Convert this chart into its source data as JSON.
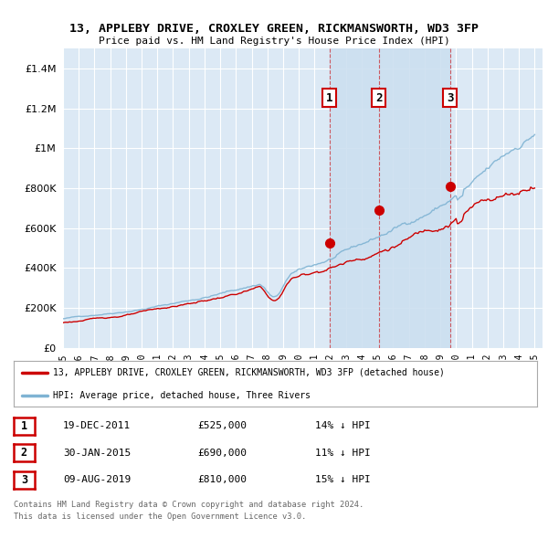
{
  "title": "13, APPLEBY DRIVE, CROXLEY GREEN, RICKMANSWORTH, WD3 3FP",
  "subtitle": "Price paid vs. HM Land Registry's House Price Index (HPI)",
  "background_color": "#ffffff",
  "chart_bg_color": "#dce9f5",
  "grid_color": "#c8d8e8",
  "ylim": [
    0,
    1500000
  ],
  "yticks": [
    0,
    200000,
    400000,
    600000,
    800000,
    1000000,
    1200000,
    1400000
  ],
  "xlim_start": 1995.0,
  "xlim_end": 2025.5,
  "xticks": [
    1995,
    1996,
    1997,
    1998,
    1999,
    2000,
    2001,
    2002,
    2003,
    2004,
    2005,
    2006,
    2007,
    2008,
    2009,
    2010,
    2011,
    2012,
    2013,
    2014,
    2015,
    2016,
    2017,
    2018,
    2019,
    2020,
    2021,
    2022,
    2023,
    2024,
    2025
  ],
  "sale1_x": 2011.96,
  "sale1_y": 525000,
  "sale1_label": "1",
  "sale2_x": 2015.08,
  "sale2_y": 690000,
  "sale2_label": "2",
  "sale3_x": 2019.61,
  "sale3_y": 810000,
  "sale3_label": "3",
  "red_color": "#cc0000",
  "blue_color": "#7fb3d3",
  "shade_color": "#ccdff0",
  "legend_line1": "13, APPLEBY DRIVE, CROXLEY GREEN, RICKMANSWORTH, WD3 3FP (detached house)",
  "legend_line2": "HPI: Average price, detached house, Three Rivers",
  "table_data": [
    {
      "num": "1",
      "date": "19-DEC-2011",
      "price": "£525,000",
      "hpi": "14% ↓ HPI"
    },
    {
      "num": "2",
      "date": "30-JAN-2015",
      "price": "£690,000",
      "hpi": "11% ↓ HPI"
    },
    {
      "num": "3",
      "date": "09-AUG-2019",
      "price": "£810,000",
      "hpi": "15% ↓ HPI"
    }
  ],
  "footer1": "Contains HM Land Registry data © Crown copyright and database right 2024.",
  "footer2": "This data is licensed under the Open Government Licence v3.0."
}
